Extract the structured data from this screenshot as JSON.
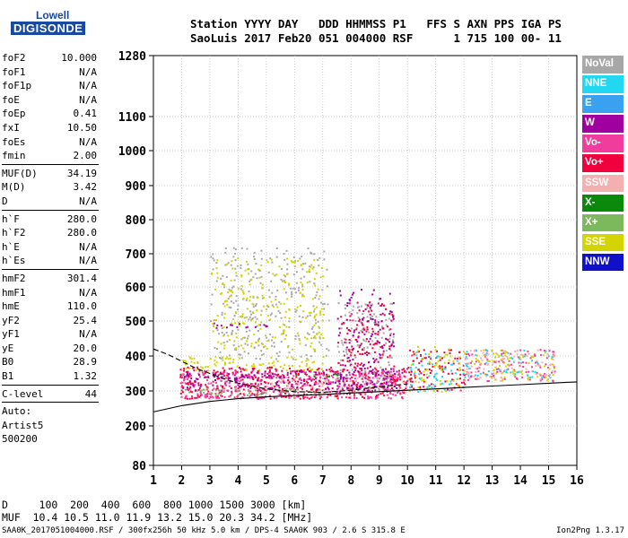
{
  "logo": {
    "line1": "Lowell",
    "line2": "DIGISONDE"
  },
  "header": {
    "row1": "Station YYYY DAY   DDD HHMMSS P1   FFS S AXN PPS IGA PS",
    "row2": "SaoLuis 2017 Feb20 051 004000 RSF      1 715 100 00- 11"
  },
  "params": {
    "group1": [
      {
        "label": "foF2",
        "value": "10.000"
      },
      {
        "label": "foF1",
        "value": "N/A"
      },
      {
        "label": "foF1p",
        "value": "N/A"
      },
      {
        "label": "foE",
        "value": "N/A"
      },
      {
        "label": "foEp",
        "value": "0.41"
      },
      {
        "label": "fxI",
        "value": "10.50"
      },
      {
        "label": "foEs",
        "value": "N/A"
      },
      {
        "label": "fmin",
        "value": "2.00"
      }
    ],
    "group2": [
      {
        "label": "MUF(D)",
        "value": "34.19"
      },
      {
        "label": "M(D)",
        "value": "3.42"
      },
      {
        "label": "D",
        "value": "N/A"
      }
    ],
    "group3": [
      {
        "label": "h`F",
        "value": "280.0"
      },
      {
        "label": "h`F2",
        "value": "280.0"
      },
      {
        "label": "h`E",
        "value": "N/A"
      },
      {
        "label": "h`Es",
        "value": "N/A"
      }
    ],
    "group4": [
      {
        "label": "hmF2",
        "value": "301.4"
      },
      {
        "label": "hmF1",
        "value": "N/A"
      },
      {
        "label": "hmE",
        "value": "110.0"
      },
      {
        "label": "yF2",
        "value": "25.4"
      },
      {
        "label": "yF1",
        "value": "N/A"
      },
      {
        "label": "yE",
        "value": "20.0"
      },
      {
        "label": "B0",
        "value": "28.9"
      },
      {
        "label": "B1",
        "value": "1.32"
      }
    ],
    "group5": [
      {
        "label": "C-level",
        "value": "44"
      }
    ],
    "auto": [
      "Auto:",
      "Artist5",
      "500200"
    ]
  },
  "legend": [
    {
      "label": "NoVal",
      "color": "#a8a8a8"
    },
    {
      "label": "NNE",
      "color": "#22d8f0"
    },
    {
      "label": "E",
      "color": "#3aa0f0"
    },
    {
      "label": "W",
      "color": "#a000a0"
    },
    {
      "label": "Vo-",
      "color": "#f03c9c"
    },
    {
      "label": "Vo+",
      "color": "#f0003c"
    },
    {
      "label": "SSW",
      "color": "#f4b0b0"
    },
    {
      "label": "X-",
      "color": "#0a8a0a"
    },
    {
      "label": "X+",
      "color": "#7cb85c"
    },
    {
      "label": "SSE",
      "color": "#d4d400"
    },
    {
      "label": "NNW",
      "color": "#1010c8"
    }
  ],
  "footer": {
    "line1": "D     100  200  400  600  800 1000 1500 3000 [km]",
    "line2": "MUF  10.4 10.5 11.0 11.9 13.2 15.0 20.3 34.2 [MHz]",
    "line3": "SAA0K_2017051004000.RSF / 300fx256h 50 kHz 5.0 km / DPS-4 SAA0K 903 / 2.6 S 315.8 E",
    "version": "Ion2Png 1.3.17"
  },
  "chart_data": {
    "type": "scatter",
    "x_ticks": [
      "1",
      "2",
      "3",
      "4",
      "5",
      "6",
      "7",
      "8",
      "9",
      "10",
      "11",
      "12",
      "13",
      "14",
      "15",
      "16"
    ],
    "y_ticks": [
      "80",
      "200",
      "300",
      "400",
      "500",
      "600",
      "700",
      "800",
      "900",
      "1000",
      "1100",
      "1280"
    ],
    "xlim": [
      1,
      16
    ],
    "y_tick_values": [
      80,
      200,
      300,
      400,
      500,
      600,
      700,
      800,
      900,
      1000,
      1100,
      1280
    ],
    "grid": true,
    "legend_position": "right",
    "echo_clusters": [
      {
        "label": "NoVal",
        "x_range": [
          3.0,
          7.2
        ],
        "y_range": [
          390,
          720
        ],
        "density": 0.35
      },
      {
        "label": "W",
        "x_range": [
          3.0,
          5.0
        ],
        "y_range": [
          480,
          500
        ],
        "density": 0.7
      },
      {
        "label": "SSE",
        "x_range": [
          3.0,
          7.0
        ],
        "y_range": [
          420,
          690
        ],
        "density": 0.35
      },
      {
        "label": "SSE",
        "x_range": [
          2.0,
          7.0
        ],
        "y_range": [
          360,
          400
        ],
        "density": 0.8
      },
      {
        "label": "Vo+",
        "x_range": [
          1.9,
          10.0
        ],
        "y_range": [
          280,
          370
        ],
        "density": 1.0
      },
      {
        "label": "Vo-",
        "x_range": [
          1.9,
          10.0
        ],
        "y_range": [
          280,
          360
        ],
        "density": 0.9
      },
      {
        "label": "SSW",
        "x_range": [
          5.0,
          10.5
        ],
        "y_range": [
          290,
          350
        ],
        "density": 0.5
      },
      {
        "label": "W",
        "x_range": [
          2.0,
          10.0
        ],
        "y_range": [
          300,
          360
        ],
        "density": 0.6
      },
      {
        "label": "NoVal",
        "x_range": [
          7.5,
          9.5
        ],
        "y_range": [
          300,
          560
        ],
        "density": 0.45
      },
      {
        "label": "Vo+",
        "x_range": [
          7.5,
          9.5
        ],
        "y_range": [
          370,
          560
        ],
        "density": 0.5
      },
      {
        "label": "W",
        "x_range": [
          7.5,
          9.5
        ],
        "y_range": [
          300,
          600
        ],
        "density": 0.35
      },
      {
        "label": "Vo+",
        "x_range": [
          10.0,
          12.0
        ],
        "y_range": [
          300,
          420
        ],
        "density": 0.7
      },
      {
        "label": "NNE",
        "x_range": [
          10.0,
          12.0
        ],
        "y_range": [
          300,
          420
        ],
        "density": 0.4
      },
      {
        "label": "SSE",
        "x_range": [
          10.0,
          12.0
        ],
        "y_range": [
          300,
          430
        ],
        "density": 0.4
      },
      {
        "label": "Vo-",
        "x_range": [
          12.0,
          15.2
        ],
        "y_range": [
          330,
          420
        ],
        "density": 0.6
      },
      {
        "label": "SSW",
        "x_range": [
          12.0,
          15.2
        ],
        "y_range": [
          330,
          420
        ],
        "density": 0.55
      },
      {
        "label": "SSE",
        "x_range": [
          12.0,
          15.2
        ],
        "y_range": [
          330,
          420
        ],
        "density": 0.4
      },
      {
        "label": "NNE",
        "x_range": [
          12.0,
          15.2
        ],
        "y_range": [
          340,
          420
        ],
        "density": 0.3
      },
      {
        "label": "X+",
        "x_range": [
          1.8,
          7.0
        ],
        "y_range": [
          290,
          310
        ],
        "density": 0.7
      },
      {
        "label": "X-",
        "x_range": [
          5.5,
          7.5
        ],
        "y_range": [
          340,
          350
        ],
        "density": 0.6
      }
    ],
    "curves": [
      {
        "name": "ordinary trace",
        "x": [
          1.0,
          2.0,
          3.0,
          4.0,
          5.0,
          6.0,
          7.0,
          8.0,
          9.0,
          10.0,
          11.0,
          12.0,
          13.0,
          14.0,
          15.0,
          16.0
        ],
        "y": [
          240,
          258,
          270,
          278,
          283,
          287,
          290,
          294,
          298,
          302,
          306,
          310,
          314,
          318,
          322,
          326
        ]
      },
      {
        "name": "upper trace",
        "x": [
          1.0,
          1.5,
          2.0,
          2.5,
          3.0,
          3.5,
          4.0,
          5.0,
          6.0,
          7.0,
          8.0,
          9.0,
          10.0
        ],
        "y": [
          420,
          405,
          385,
          365,
          350,
          335,
          322,
          306,
          298,
          296,
          302,
          312,
          320
        ]
      }
    ]
  }
}
